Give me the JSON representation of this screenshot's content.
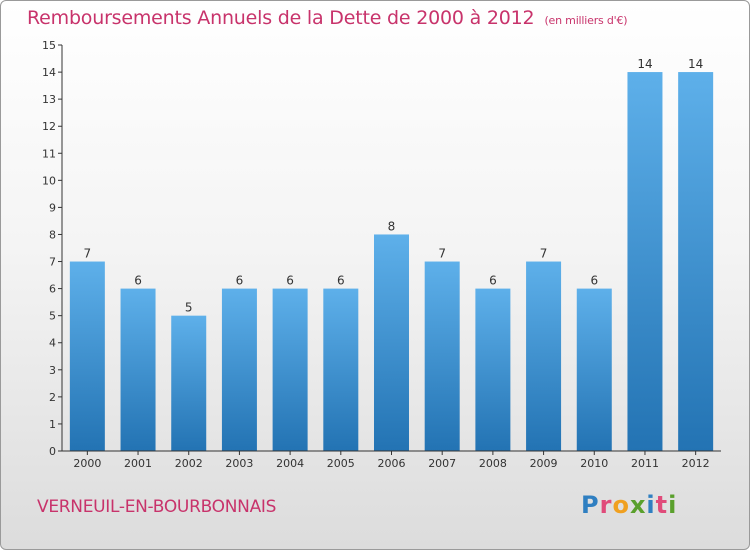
{
  "header": {
    "title": "Remboursements Annuels de la Dette de 2000 à 2012",
    "subtitle": "(en milliers d'€)"
  },
  "footer": {
    "commune": "VERNEUIL-EN-BOURBONNAIS",
    "logo": "Proxiti"
  },
  "colors": {
    "title": "#c8336b",
    "bar_light": "#5eb0ea",
    "bar_dark": "#2373b3",
    "axis": "#333333"
  },
  "chart_data": {
    "type": "bar",
    "title": "Remboursements Annuels de la Dette de 2000 à 2012",
    "subtitle": "(en milliers d'€)",
    "xlabel": "",
    "ylabel": "",
    "categories": [
      "2000",
      "2001",
      "2002",
      "2003",
      "2004",
      "2005",
      "2006",
      "2007",
      "2008",
      "2009",
      "2010",
      "2011",
      "2012"
    ],
    "values": [
      7,
      6,
      5,
      6,
      6,
      6,
      8,
      7,
      6,
      7,
      6,
      14,
      14
    ],
    "ylim": [
      0,
      15
    ],
    "yticks": [
      0,
      1,
      2,
      3,
      4,
      5,
      6,
      7,
      8,
      9,
      10,
      11,
      12,
      13,
      14,
      15
    ],
    "grid": false
  }
}
